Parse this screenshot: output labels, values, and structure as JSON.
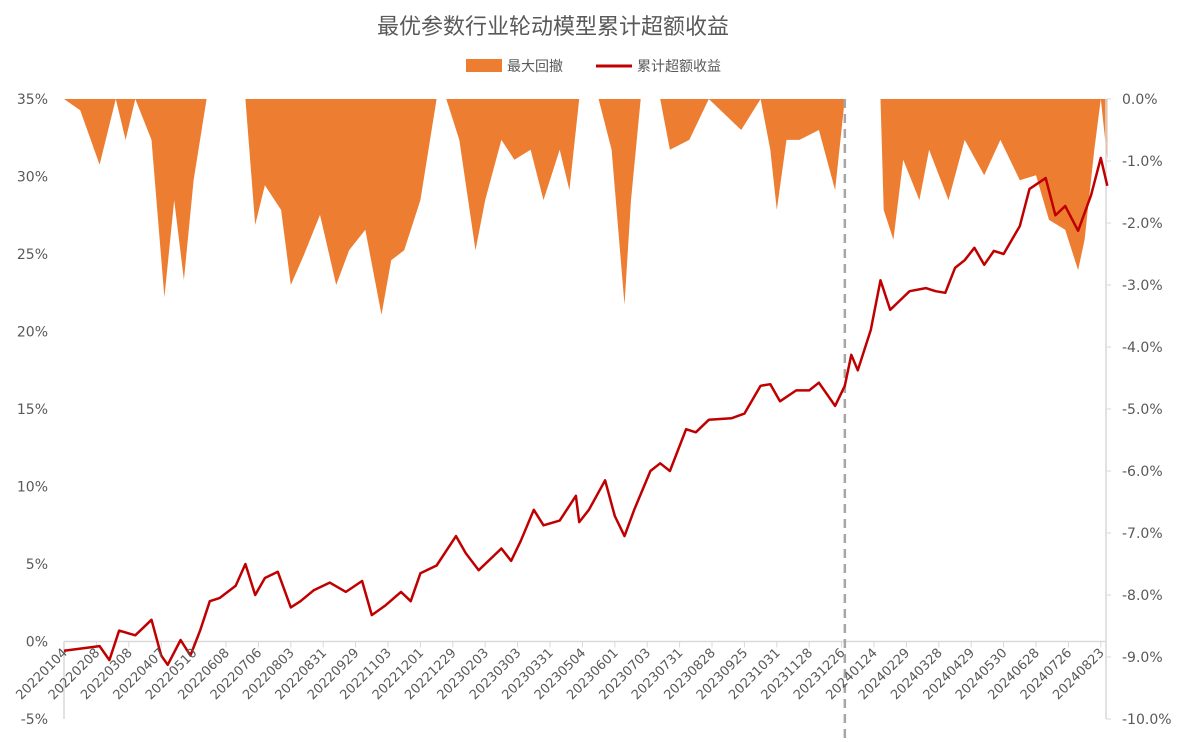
{
  "chart_data": {
    "type": "line",
    "title": "最优参数行业轮动模型累计超额收益",
    "legend": {
      "placement": "top-center",
      "entries": [
        "最大回撤",
        "累计超额收益"
      ]
    },
    "x_tick_labels": [
      "20220104",
      "20220208",
      "20220308",
      "20220407",
      "20220510",
      "20220608",
      "20220706",
      "20220803",
      "20220831",
      "20220929",
      "20221103",
      "20221201",
      "20221229",
      "20230203",
      "20230303",
      "20230331",
      "20230504",
      "20230601",
      "20230703",
      "20230731",
      "20230828",
      "20230925",
      "20231031",
      "20231128",
      "20231226",
      "20240124",
      "20240229",
      "20240328",
      "20240429",
      "20240530",
      "20240628",
      "20240726",
      "20240823"
    ],
    "x_unit_note": "x values are positions measured in tick-label intervals (0 = 20220104)",
    "xlim": [
      0,
      32.2
    ],
    "left_axis": {
      "ylim": [
        -5,
        35
      ],
      "ticks": [
        -5,
        0,
        5,
        10,
        15,
        20,
        25,
        30,
        35
      ],
      "tick_labels": [
        "-5%",
        "0%",
        "5%",
        "10%",
        "15%",
        "20%",
        "25%",
        "30%",
        "35%"
      ]
    },
    "right_axis": {
      "ylim": [
        -10,
        0
      ],
      "ticks": [
        -10,
        -9,
        -8,
        -7,
        -6,
        -5,
        -4,
        -3,
        -2,
        -1,
        0
      ],
      "tick_labels": [
        "-10.0%",
        "-9.0%",
        "-8.0%",
        "-7.0%",
        "-6.0%",
        "-5.0%",
        "-4.0%",
        "-3.0%",
        "-2.0%",
        "-1.0%",
        "0.0%"
      ]
    },
    "grid": false,
    "vertical_marker_x": 24.1,
    "series": [
      {
        "name": "最大回撤",
        "type": "area",
        "axis": "right",
        "color": "#ed7d31",
        "x": [
          0,
          0.5,
          1.1,
          1.6,
          1.9,
          2.2,
          2.7,
          3.1,
          3.4,
          3.7,
          4.0,
          4.4,
          5.1,
          5.6,
          5.9,
          6.2,
          6.7,
          7.0,
          7.4,
          7.9,
          8.4,
          8.8,
          9.3,
          9.8,
          10.1,
          10.5,
          11.0,
          11.5,
          11.8,
          12.2,
          12.7,
          13.0,
          13.5,
          13.9,
          14.4,
          14.8,
          15.3,
          15.6,
          15.9,
          16.5,
          16.9,
          17.3,
          17.5,
          17.8,
          18.4,
          18.7,
          19.3,
          19.9,
          20.9,
          21.5,
          21.8,
          22.0,
          22.3,
          22.7,
          23.3,
          23.8,
          24.1,
          25.2,
          25.3,
          25.6,
          25.9,
          26.4,
          26.7,
          27.3,
          27.8,
          28.4,
          28.9,
          29.5,
          30.0,
          30.4,
          30.9,
          31.3,
          31.5,
          31.8,
          32.0,
          32.2
        ],
        "values": [
          0,
          -0.18,
          -1.06,
          0,
          -0.66,
          0,
          -0.66,
          -3.2,
          -1.63,
          -2.92,
          -1.31,
          0,
          0,
          0,
          -2.03,
          -1.39,
          -1.79,
          -3.0,
          -2.52,
          -1.87,
          -3.0,
          -2.44,
          -2.11,
          -3.48,
          -2.6,
          -2.44,
          -1.63,
          0,
          0,
          -0.66,
          -2.44,
          -1.63,
          -0.66,
          -0.98,
          -0.82,
          -1.63,
          -0.82,
          -1.47,
          0,
          0,
          -0.82,
          -3.32,
          -1.63,
          0,
          0,
          -0.82,
          -0.66,
          0,
          -0.5,
          0,
          -0.82,
          -1.79,
          -0.66,
          -0.66,
          -0.5,
          -1.47,
          0,
          0,
          -1.79,
          -2.27,
          -0.98,
          -1.63,
          -0.82,
          -1.63,
          -0.66,
          -1.23,
          -0.66,
          -1.31,
          -1.23,
          -1.95,
          -2.11,
          -2.76,
          -2.27,
          -0.82,
          0,
          -0.98
        ]
      },
      {
        "name": "累计超额收益",
        "type": "line",
        "axis": "left",
        "color": "#c00000",
        "x": [
          0,
          1.1,
          1.4,
          1.7,
          2.2,
          2.7,
          3.0,
          3.2,
          3.6,
          3.9,
          4.2,
          4.5,
          4.8,
          5.3,
          5.6,
          5.9,
          6.2,
          6.6,
          7.0,
          7.3,
          7.7,
          8.2,
          8.7,
          9.2,
          9.5,
          9.9,
          10.4,
          10.7,
          11.0,
          11.5,
          12.1,
          12.4,
          12.8,
          13.5,
          13.8,
          14.1,
          14.5,
          14.8,
          15.3,
          15.8,
          15.9,
          16.2,
          16.7,
          17.0,
          17.3,
          17.6,
          18.1,
          18.4,
          18.7,
          19.2,
          19.5,
          19.9,
          20.6,
          21.0,
          21.5,
          21.8,
          22.1,
          22.6,
          23.0,
          23.3,
          23.8,
          24.1,
          24.3,
          24.5,
          24.9,
          25.2,
          25.5,
          25.8,
          26.1,
          26.6,
          26.9,
          27.2,
          27.5,
          27.8,
          28.1,
          28.4,
          28.7,
          29.0,
          29.5,
          29.8,
          30.3,
          30.6,
          30.9,
          31.3,
          31.7,
          32.0,
          32.2
        ],
        "values": [
          -0.6,
          -0.3,
          -1.2,
          0.7,
          0.4,
          1.4,
          -0.9,
          -1.5,
          0.1,
          -0.9,
          0.7,
          2.6,
          2.8,
          3.6,
          5.0,
          3.0,
          4.1,
          4.5,
          2.2,
          2.6,
          3.3,
          3.8,
          3.2,
          3.9,
          1.7,
          2.3,
          3.2,
          2.6,
          4.4,
          4.9,
          6.8,
          5.7,
          4.6,
          6.0,
          5.2,
          6.5,
          8.5,
          7.5,
          7.8,
          9.4,
          7.7,
          8.5,
          10.4,
          8.1,
          6.8,
          8.5,
          11.0,
          11.5,
          11.0,
          13.7,
          13.5,
          14.3,
          14.4,
          14.7,
          16.5,
          16.6,
          15.5,
          16.2,
          16.2,
          16.7,
          15.2,
          16.5,
          18.5,
          17.5,
          20.1,
          23.3,
          21.4,
          22.0,
          22.6,
          22.8,
          22.6,
          22.5,
          24.1,
          24.6,
          25.4,
          24.3,
          25.2,
          25.0,
          26.8,
          29.2,
          29.9,
          27.5,
          28.1,
          26.5,
          28.8,
          31.2,
          29.4
        ]
      }
    ]
  }
}
